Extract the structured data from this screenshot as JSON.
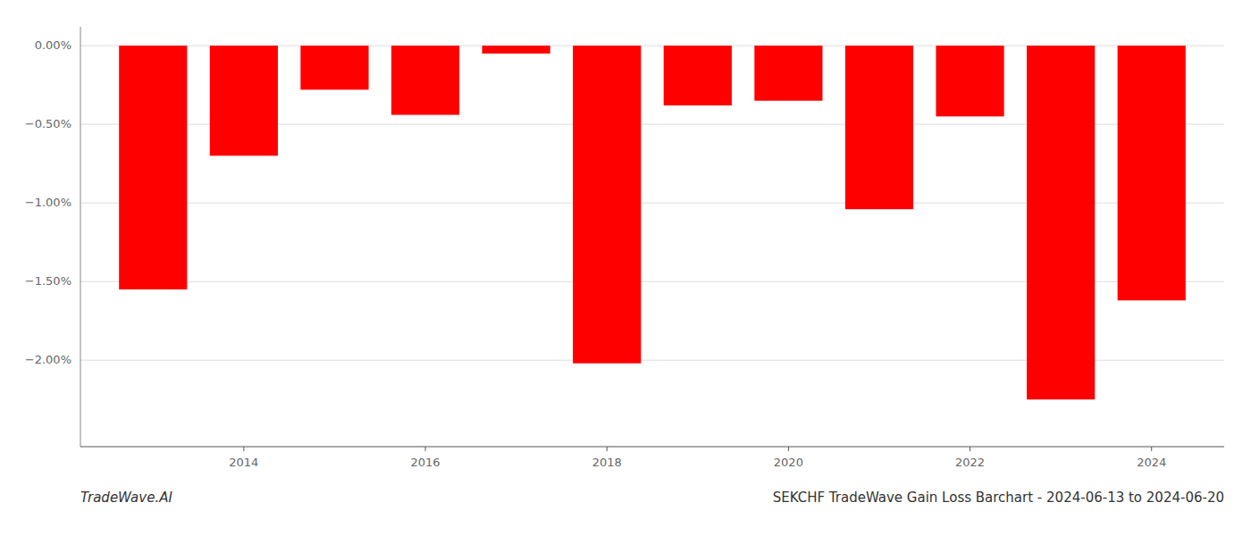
{
  "chart_data": {
    "type": "bar",
    "title": "SEKCHF TradeWave Gain Loss Barchart - 2024-06-13 to 2024-06-20",
    "annotations": [
      "TradeWave.AI"
    ],
    "x": [
      2013,
      2014,
      2015,
      2016,
      2017,
      2018,
      2019,
      2020,
      2021,
      2022,
      2023,
      2024
    ],
    "values": [
      -1.55,
      -0.7,
      -0.28,
      -0.44,
      -0.05,
      -2.02,
      -0.38,
      -0.35,
      -1.04,
      -0.45,
      -2.25,
      -1.62
    ],
    "color": "#ff0000",
    "xlim": [
      2012.2,
      2024.8
    ],
    "xticks": [
      2014,
      2016,
      2018,
      2020,
      2022,
      2024
    ],
    "ylim": [
      -2.55,
      0.12
    ],
    "yticks": [
      {
        "value": 0.0,
        "label": "0.00%"
      },
      {
        "value": -0.5,
        "label": "−0.50%"
      },
      {
        "value": -1.0,
        "label": "−1.00%"
      },
      {
        "value": -1.5,
        "label": "−1.50%"
      },
      {
        "value": -2.0,
        "label": "−2.00%"
      }
    ],
    "grid": true
  }
}
